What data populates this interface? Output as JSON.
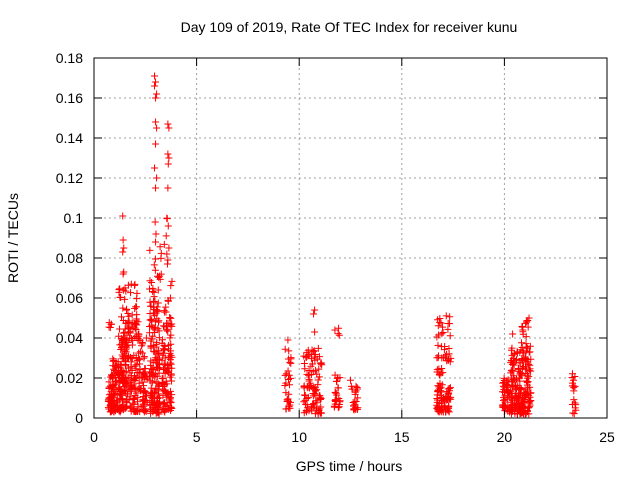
{
  "chart_data": {
    "type": "scatter",
    "title": "Day 109 of 2019, Rate Of TEC Index for receiver kunu",
    "xlabel": "GPS time / hours",
    "ylabel": "ROTI / TECUs",
    "xlim": [
      0,
      25
    ],
    "ylim": [
      0,
      0.18
    ],
    "xticks": [
      0,
      5,
      10,
      15,
      20,
      25
    ],
    "xtick_labels": [
      "0",
      "5",
      "10",
      "15",
      "20",
      "25"
    ],
    "yticks": [
      0,
      0.02,
      0.04,
      0.06,
      0.08,
      0.1,
      0.12,
      0.14,
      0.16,
      0.18
    ],
    "ytick_labels": [
      "0",
      "0.02",
      "0.04",
      "0.06",
      "0.08",
      "0.1",
      "0.12",
      "0.14",
      "0.16",
      "0.18"
    ],
    "grid": true,
    "marker": "plus",
    "color": "#ff0000",
    "clusters": [
      {
        "x_range": [
          0.7,
          0.9
        ],
        "y_range": [
          0.003,
          0.022
        ],
        "n": 40
      },
      {
        "x_range": [
          0.7,
          0.85
        ],
        "y_range": [
          0.045,
          0.049
        ],
        "n": 5
      },
      {
        "x_range": [
          0.9,
          1.3
        ],
        "y_range": [
          0.003,
          0.03
        ],
        "n": 80
      },
      {
        "x_range": [
          1.2,
          1.6
        ],
        "y_range": [
          0.035,
          0.066
        ],
        "n": 30
      },
      {
        "x_range": [
          1.3,
          1.6
        ],
        "y_range": [
          0.004,
          0.04
        ],
        "n": 80
      },
      {
        "x_range": [
          1.6,
          2.2
        ],
        "y_range": [
          0.003,
          0.05
        ],
        "n": 100
      },
      {
        "x_range": [
          1.6,
          2.1
        ],
        "y_range": [
          0.04,
          0.068
        ],
        "n": 20
      },
      {
        "x_range": [
          2.2,
          2.6
        ],
        "y_range": [
          0.003,
          0.04
        ],
        "n": 60
      },
      {
        "x_range": [
          2.7,
          3.2
        ],
        "y_range": [
          0.002,
          0.06
        ],
        "n": 150
      },
      {
        "x_range": [
          2.7,
          3.3
        ],
        "y_range": [
          0.06,
          0.1
        ],
        "n": 20
      },
      {
        "x_range": [
          3.3,
          3.8
        ],
        "y_range": [
          0.003,
          0.05
        ],
        "n": 100
      },
      {
        "x_range": [
          3.4,
          3.8
        ],
        "y_range": [
          0.05,
          0.1
        ],
        "n": 15
      },
      {
        "x_range": [
          9.3,
          9.6
        ],
        "y_range": [
          0.004,
          0.035
        ],
        "n": 30
      },
      {
        "x_range": [
          10.2,
          11.1
        ],
        "y_range": [
          0.002,
          0.035
        ],
        "n": 100
      },
      {
        "x_range": [
          11.7,
          12.0
        ],
        "y_range": [
          0.005,
          0.022
        ],
        "n": 25
      },
      {
        "x_range": [
          11.7,
          12.0
        ],
        "y_range": [
          0.04,
          0.048
        ],
        "n": 4
      },
      {
        "x_range": [
          12.5,
          12.9
        ],
        "y_range": [
          0.004,
          0.02
        ],
        "n": 25
      },
      {
        "x_range": [
          16.7,
          17.0
        ],
        "y_range": [
          0.003,
          0.025
        ],
        "n": 50
      },
      {
        "x_range": [
          16.7,
          17.0
        ],
        "y_range": [
          0.03,
          0.05
        ],
        "n": 15
      },
      {
        "x_range": [
          17.0,
          17.4
        ],
        "y_range": [
          0.003,
          0.016
        ],
        "n": 35
      },
      {
        "x_range": [
          17.0,
          17.4
        ],
        "y_range": [
          0.028,
          0.052
        ],
        "n": 20
      },
      {
        "x_range": [
          19.9,
          20.4
        ],
        "y_range": [
          0.003,
          0.02
        ],
        "n": 60
      },
      {
        "x_range": [
          20.3,
          21.3
        ],
        "y_range": [
          0.002,
          0.035
        ],
        "n": 200
      },
      {
        "x_range": [
          20.8,
          21.3
        ],
        "y_range": [
          0.035,
          0.05
        ],
        "n": 15
      },
      {
        "x_range": [
          23.3,
          23.5
        ],
        "y_range": [
          0.002,
          0.025
        ],
        "n": 18
      }
    ],
    "points": [
      [
        1.4,
        0.101
      ],
      [
        1.42,
        0.089
      ],
      [
        1.45,
        0.085
      ],
      [
        1.4,
        0.083
      ],
      [
        1.45,
        0.073
      ],
      [
        1.42,
        0.072
      ],
      [
        2.95,
        0.171
      ],
      [
        3.0,
        0.168
      ],
      [
        2.95,
        0.166
      ],
      [
        3.05,
        0.162
      ],
      [
        3.0,
        0.16
      ],
      [
        3.0,
        0.148
      ],
      [
        3.05,
        0.145
      ],
      [
        3.0,
        0.137
      ],
      [
        2.95,
        0.125
      ],
      [
        3.05,
        0.12
      ],
      [
        3.0,
        0.115
      ],
      [
        2.98,
        0.098
      ],
      [
        3.02,
        0.092
      ],
      [
        3.0,
        0.088
      ],
      [
        3.6,
        0.147
      ],
      [
        3.65,
        0.145
      ],
      [
        3.6,
        0.132
      ],
      [
        3.65,
        0.13
      ],
      [
        3.62,
        0.127
      ],
      [
        3.6,
        0.115
      ],
      [
        3.62,
        0.096
      ],
      [
        3.65,
        0.085
      ],
      [
        3.55,
        0.082
      ],
      [
        3.6,
        0.079
      ],
      [
        3.58,
        0.077
      ],
      [
        9.45,
        0.039
      ],
      [
        10.75,
        0.054
      ],
      [
        10.7,
        0.052
      ],
      [
        10.75,
        0.043
      ],
      [
        20.4,
        0.042
      ],
      [
        20.9,
        0.044
      ],
      [
        21.2,
        0.05
      ]
    ]
  }
}
